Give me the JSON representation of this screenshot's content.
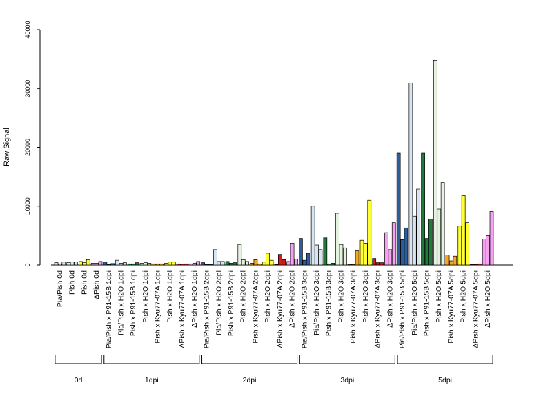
{
  "chart_data": {
    "type": "bar",
    "ylabel": "Raw Signal",
    "ylim": [
      0,
      40000
    ],
    "yticks": [
      0,
      10000,
      20000,
      30000,
      40000
    ],
    "ytick_labels": [
      "0",
      "10000",
      "20000",
      "30000",
      "40000"
    ],
    "colors": {
      "Pia/Pish": "#2a5d99",
      "Pia/Pish x H2O": "#d8e4f0",
      "Pish x P91-15B": "#1f7a3c",
      "Pish x H2O": "#e4f2df",
      "Pish x Kyu77-07A": "#f5a623",
      "Pish": "#ffff33",
      "ΔPish x Kyu77-07A": "#d7191c",
      "ΔPish": "#f5a3f0"
    },
    "categories": [
      {
        "label": "Pia/Pish 0d",
        "values": [
          400,
          200,
          500
        ],
        "color": "#d8e4f0"
      },
      {
        "label": "Pish 0d",
        "values": [
          400,
          500,
          500
        ],
        "color": "#e4f2df"
      },
      {
        "label": "Pish 0d",
        "values": [
          600,
          400,
          900
        ],
        "color": "#ffff33"
      },
      {
        "label": "ΔPish 0d",
        "values": [
          300,
          300,
          600
        ],
        "color": "#f5a3f0"
      },
      {
        "label": "Pia/Pish x P91-15B 1dpi",
        "values": [
          500,
          100,
          250
        ],
        "color": "#2a5d99"
      },
      {
        "label": "Pia/Pish x H2O 1dpi",
        "values": [
          800,
          300,
          400
        ],
        "color": "#d8e4f0"
      },
      {
        "label": "Pish x P91-15B 1dpi",
        "values": [
          200,
          200,
          400
        ],
        "color": "#1f7a3c"
      },
      {
        "label": "Pish x H2O 1dpi",
        "values": [
          300,
          400,
          300
        ],
        "color": "#e4f2df"
      },
      {
        "label": "Pish x Kyu77-07A 1dpi",
        "values": [
          200,
          200,
          200
        ],
        "color": "#f5a623"
      },
      {
        "label": "Pish x H2O 1dpi",
        "values": [
          300,
          500,
          500
        ],
        "color": "#ffff33"
      },
      {
        "label": "ΔPish x Kyu77-07A 1dpi",
        "values": [
          200,
          150,
          200
        ],
        "color": "#d7191c"
      },
      {
        "label": "ΔPish x H2O 1dpi",
        "values": [
          200,
          300,
          600
        ],
        "color": "#f5a3f0"
      },
      {
        "label": "Pia/Pish x P91-15B 2dpi",
        "values": [
          400,
          100,
          100
        ],
        "color": "#2a5d99"
      },
      {
        "label": "Pia/Pish x H2O 2dpi",
        "values": [
          2600,
          600,
          600
        ],
        "color": "#d8e4f0"
      },
      {
        "label": "Pish x P91-15B 2dpi",
        "values": [
          600,
          300,
          400
        ],
        "color": "#1f7a3c"
      },
      {
        "label": "Pish x H2O 2dpi",
        "values": [
          3500,
          900,
          600
        ],
        "color": "#e4f2df"
      },
      {
        "label": "Pish x Kyu77-07A 2dpi",
        "values": [
          300,
          900,
          200
        ],
        "color": "#f5a623"
      },
      {
        "label": "Pish x H2O 2dpi",
        "values": [
          500,
          2000,
          800
        ],
        "color": "#ffff33"
      },
      {
        "label": "ΔPish x Kyu77-07A 2dpi",
        "values": [
          100,
          1800,
          900
        ],
        "color": "#d7191c"
      },
      {
        "label": "ΔPish x H2O 2dpi",
        "values": [
          600,
          3700,
          1000
        ],
        "color": "#f5a3f0"
      },
      {
        "label": "Pia/Pish x P91-15B 3dpi",
        "values": [
          4500,
          800,
          2000
        ],
        "color": "#2a5d99"
      },
      {
        "label": "Pia/Pish x H2O 3dpi",
        "values": [
          10000,
          3400,
          2600
        ],
        "color": "#d8e4f0"
      },
      {
        "label": "Pish x P91-15B 3dpi",
        "values": [
          4600,
          200,
          300
        ],
        "color": "#1f7a3c"
      },
      {
        "label": "Pish x H2O 3dpi",
        "values": [
          8800,
          3500,
          2900
        ],
        "color": "#e4f2df"
      },
      {
        "label": "Pish x Kyu77-07A 3dpi",
        "values": [
          100,
          100,
          2400
        ],
        "color": "#f5a623"
      },
      {
        "label": "Pish x H2O 3dpi",
        "values": [
          4200,
          3700,
          11000
        ],
        "color": "#ffff33"
      },
      {
        "label": "ΔPish x Kyu77-07A 3dpi",
        "values": [
          1100,
          400,
          400
        ],
        "color": "#d7191c"
      },
      {
        "label": "ΔPish x H2O 3dpi",
        "values": [
          5500,
          2600,
          7200
        ],
        "color": "#f5a3f0"
      },
      {
        "label": "Pia/Pish x P91-15B 5dpi",
        "values": [
          19000,
          4300,
          6300
        ],
        "color": "#2a5d99"
      },
      {
        "label": "Pia/Pish x H2O 5dpi",
        "values": [
          30900,
          8300,
          12900
        ],
        "color": "#d8e4f0"
      },
      {
        "label": "Pish x P91-15B 5dpi",
        "values": [
          19000,
          4500,
          7800
        ],
        "color": "#1f7a3c"
      },
      {
        "label": "Pish x H2O 5dpi",
        "values": [
          34800,
          9500,
          14000
        ],
        "color": "#e4f2df"
      },
      {
        "label": "Pish x Kyu77-07A 5dpi",
        "values": [
          1700,
          700,
          1500
        ],
        "color": "#f5a623"
      },
      {
        "label": "Pish x H2O 5dpi",
        "values": [
          6600,
          11800,
          7200
        ],
        "color": "#ffff33"
      },
      {
        "label": "ΔPish x Kyu77-07A 5dpi",
        "values": [
          100,
          100,
          200
        ],
        "color": "#d7191c"
      },
      {
        "label": "ΔPish x H2O 5dpi",
        "values": [
          4400,
          5000,
          9100
        ],
        "color": "#f5a3f0"
      }
    ],
    "groups": [
      {
        "label": "0d",
        "from": 0,
        "to": 3
      },
      {
        "label": "1dpi",
        "from": 4,
        "to": 11
      },
      {
        "label": "2dpi",
        "from": 12,
        "to": 19
      },
      {
        "label": "3dpi",
        "from": 20,
        "to": 27
      },
      {
        "label": "5dpi",
        "from": 28,
        "to": 35
      }
    ]
  }
}
